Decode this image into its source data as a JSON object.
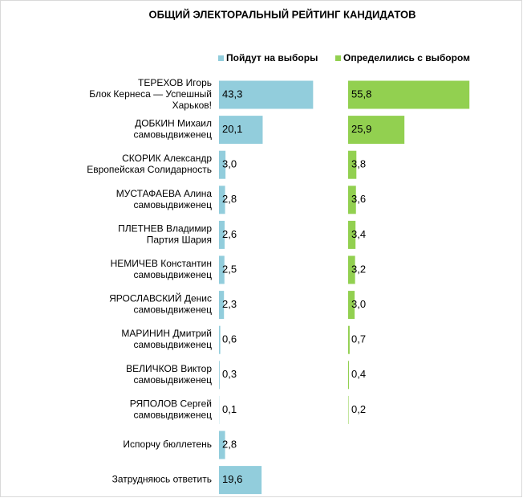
{
  "chart_data": {
    "type": "bar",
    "title": "ОБЩИЙ ЭЛЕКТОРАЛЬНЫЙ РЕЙТИНГ КАНДИДАТОВ",
    "categories": [
      [
        "ТЕРЕХОВ Игорь",
        "Блок Кернеса — Успешный",
        "Харьков!"
      ],
      [
        "ДОБКИН Михаил",
        "самовыдвиженец"
      ],
      [
        "СКОРИК Александр",
        "Европейская Солидарность"
      ],
      [
        "МУСТАФАЕВА  Алина",
        "самовыдвиженец"
      ],
      [
        "ПЛЕТНЕВ Владимир",
        "Партия Шария"
      ],
      [
        "НЕМИЧЕВ Константин",
        "самовыдвиженец"
      ],
      [
        "ЯРОСЛАВСКИЙ Денис",
        "самовыдвиженец"
      ],
      [
        "МАРИНИН Дмитрий",
        "самовыдвиженец"
      ],
      [
        "ВЕЛИЧКОВ Виктор",
        "самовыдвиженец"
      ],
      [
        "РЯПОЛОВ Сергей",
        "самовыдвиженец"
      ],
      [
        "Испорчу бюллетень"
      ],
      [
        "Затрудняюсь ответить"
      ]
    ],
    "series": [
      {
        "name": "Пойдут на выборы",
        "color": "#92cddc",
        "values": [
          43.3,
          20.1,
          3.0,
          2.8,
          2.6,
          2.5,
          2.3,
          0.6,
          0.3,
          0.1,
          2.8,
          19.6
        ],
        "value_labels": [
          "43,3",
          "20,1",
          "3,0",
          "2,8",
          "2,6",
          "2,5",
          "2,3",
          "0,6",
          "0,3",
          "0,1",
          "2,8",
          "19,6"
        ]
      },
      {
        "name": "Определились с выбором",
        "color": "#92d050",
        "values": [
          55.8,
          25.9,
          3.8,
          3.6,
          3.4,
          3.2,
          3.0,
          0.7,
          0.4,
          0.2,
          null,
          null
        ],
        "value_labels": [
          "55,8",
          "25,9",
          "3,8",
          "3,6",
          "3,4",
          "3,2",
          "3,0",
          "0,7",
          "0,4",
          "0,2",
          null,
          null
        ]
      }
    ]
  }
}
